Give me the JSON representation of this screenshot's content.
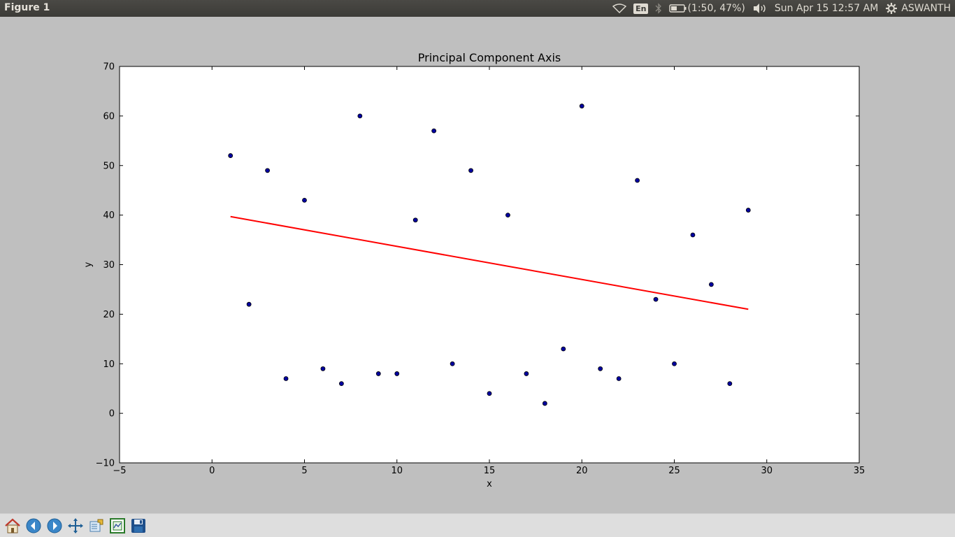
{
  "window": {
    "title": "Figure 1"
  },
  "system_tray": {
    "keyboard_layout": "En",
    "battery_text": "(1:50, 47%)",
    "datetime": "Sun Apr 15 12:57 AM",
    "user": "ASWANTH"
  },
  "toolbar": {
    "buttons": [
      {
        "icon": "home-icon"
      },
      {
        "icon": "back-arrow-icon"
      },
      {
        "icon": "forward-arrow-icon"
      },
      {
        "icon": "pan-icon"
      },
      {
        "icon": "zoom-rect-icon"
      },
      {
        "icon": "configure-subplots-icon"
      },
      {
        "icon": "save-icon"
      }
    ]
  },
  "chart_data": {
    "type": "scatter",
    "title": "Principal Component Axis",
    "xlabel": "x",
    "ylabel": "y",
    "xlim": [
      -5,
      35
    ],
    "ylim": [
      -10,
      70
    ],
    "xticks": [
      -5,
      0,
      5,
      10,
      15,
      20,
      25,
      30,
      35
    ],
    "yticks": [
      -10,
      0,
      10,
      20,
      30,
      40,
      50,
      60,
      70
    ],
    "xtick_labels": [
      "−5",
      "0",
      "5",
      "10",
      "15",
      "20",
      "25",
      "30",
      "35"
    ],
    "ytick_labels": [
      "−10",
      "0",
      "10",
      "20",
      "30",
      "40",
      "50",
      "60",
      "70"
    ],
    "grid": false,
    "colors": {
      "points": "#0000a0",
      "line": "#ff0000",
      "background": "#ffffff"
    },
    "points": [
      [
        1,
        52
      ],
      [
        2,
        22
      ],
      [
        3,
        49
      ],
      [
        4,
        7
      ],
      [
        5,
        43
      ],
      [
        6,
        9
      ],
      [
        7,
        6
      ],
      [
        8,
        60
      ],
      [
        9,
        8
      ],
      [
        10,
        8
      ],
      [
        11,
        39
      ],
      [
        12,
        57
      ],
      [
        13,
        10
      ],
      [
        14,
        49
      ],
      [
        15,
        4
      ],
      [
        16,
        40
      ],
      [
        17,
        8
      ],
      [
        18,
        2
      ],
      [
        19,
        13
      ],
      [
        20,
        62
      ],
      [
        21,
        9
      ],
      [
        22,
        7
      ],
      [
        23,
        47
      ],
      [
        24,
        23
      ],
      [
        25,
        10
      ],
      [
        26,
        36
      ],
      [
        27,
        26
      ],
      [
        28,
        6
      ],
      [
        29,
        41
      ]
    ],
    "line": {
      "x": [
        1,
        29
      ],
      "y": [
        39.7,
        21.0
      ]
    }
  }
}
